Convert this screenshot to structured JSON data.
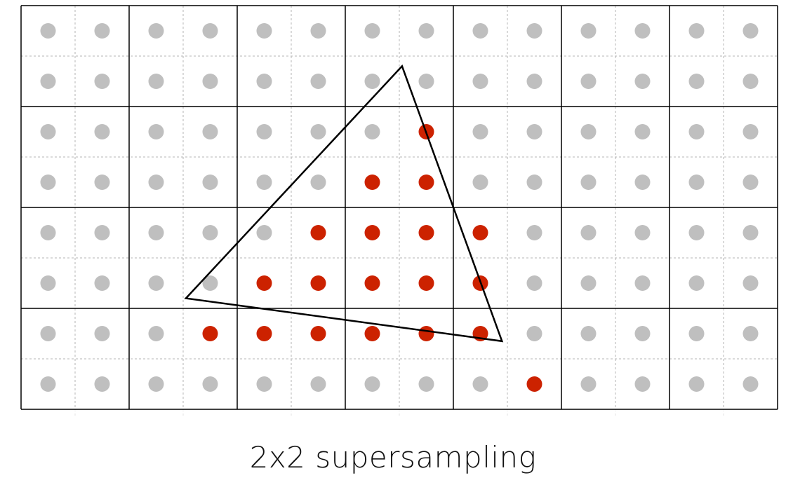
{
  "caption": "2x2 supersampling",
  "grid": {
    "pixel_columns": 7,
    "pixel_rows": 4,
    "samples_per_pixel_x": 2,
    "samples_per_pixel_y": 2
  },
  "triangle": {
    "vertices": [
      [
        7.05,
        1.2
      ],
      [
        3.05,
        5.8
      ],
      [
        8.9,
        6.65
      ]
    ]
  },
  "covered_samples": [
    [
      7,
      2
    ],
    [
      6,
      3
    ],
    [
      7,
      3
    ],
    [
      5,
      4
    ],
    [
      6,
      4
    ],
    [
      7,
      4
    ],
    [
      8,
      4
    ],
    [
      4,
      5
    ],
    [
      5,
      5
    ],
    [
      6,
      5
    ],
    [
      7,
      5
    ],
    [
      8,
      5
    ],
    [
      3,
      6
    ],
    [
      4,
      6
    ],
    [
      5,
      6
    ],
    [
      6,
      6
    ],
    [
      7,
      6
    ],
    [
      8,
      6
    ],
    [
      9,
      7
    ]
  ],
  "colors": {
    "uncovered_sample": "#bfbfbf",
    "covered_sample": "#cc2200",
    "pixel_grid": "#000000",
    "subsample_grid": "#b5b5b5",
    "triangle": "#000000"
  }
}
